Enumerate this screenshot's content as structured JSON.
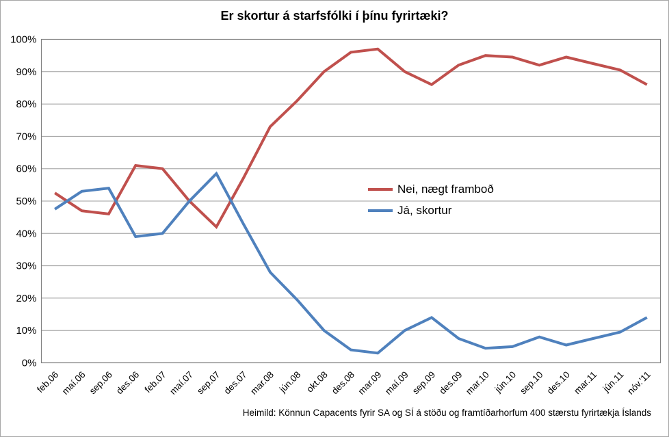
{
  "title": "Er skortur á starfsfólki í þínu fyrirtæki?",
  "source_note": "Heimild: Könnun Capacents fyrir SA og SÍ á stöðu og framtíðarhorfum 400 stærstu fyrirtækja Íslands",
  "colors": {
    "series_nei": "#C0504D",
    "series_ja": "#4F81BD",
    "gridline": "#9d9d9d",
    "plot_border": "#808080",
    "outer_border": "#a6a6a6",
    "text": "#000000"
  },
  "chart_data": {
    "type": "line",
    "title": "Er skortur á starfsfólki í þínu fyrirtæki?",
    "categories": [
      "feb.06",
      "maí.06",
      "sep.06",
      "des.06",
      "feb.07",
      "maí.07",
      "sep.07",
      "des.07",
      "mar.08",
      "jún.08",
      "okt.08",
      "des.08",
      "mar.09",
      "maí.09",
      "sep.09",
      "des.09",
      "mar.10",
      "jún.10",
      "sep.10",
      "des.10",
      "mar.11",
      "jún.11",
      "nóv.'11"
    ],
    "series": [
      {
        "name": "Nei, nægt framboð",
        "color": "#C0504D",
        "values": [
          52.5,
          47,
          46,
          61,
          60,
          50,
          42,
          57,
          73,
          81,
          90,
          96,
          97,
          90,
          86,
          92,
          95,
          94.5,
          92,
          94.5,
          92.5,
          90.5,
          86
        ]
      },
      {
        "name": "Já, skortur",
        "color": "#4F81BD",
        "values": [
          47.5,
          53,
          54,
          39,
          40,
          50,
          58.5,
          43,
          28,
          19.5,
          10,
          4,
          3,
          10,
          14,
          7.5,
          4.5,
          5,
          8,
          5.5,
          7.5,
          9.5,
          14
        ]
      }
    ],
    "xlabel": "",
    "ylabel": "",
    "ylim": [
      0,
      100
    ],
    "y_tick_step": 10,
    "y_tick_labels": [
      "0%",
      "10%",
      "20%",
      "30%",
      "40%",
      "50%",
      "60%",
      "70%",
      "80%",
      "90%",
      "100%"
    ],
    "grid": true,
    "legend_position": "inside-middle-right",
    "x_label_rotation_deg": 45
  }
}
